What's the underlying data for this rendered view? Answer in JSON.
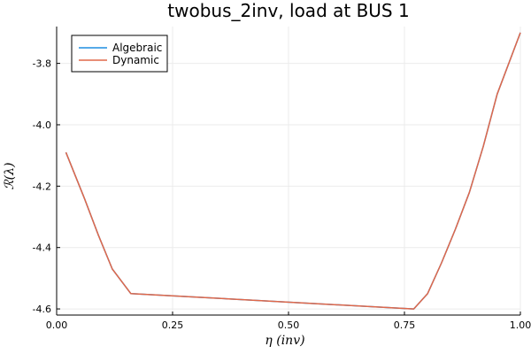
{
  "chart_data": {
    "type": "line",
    "title": "twobus_2inv, load at BUS 1",
    "xlabel": "η (inv)",
    "ylabel": "ℛ(λ)",
    "xlim": [
      0.0,
      1.0
    ],
    "ylim": [
      -4.62,
      -3.68
    ],
    "xticks": [
      0.0,
      0.25,
      0.5,
      0.75,
      1.0
    ],
    "xtick_labels": [
      "0.00",
      "0.25",
      "0.50",
      "0.75",
      "1.00"
    ],
    "yticks": [
      -4.6,
      -4.4,
      -4.2,
      -4.0,
      -3.8
    ],
    "ytick_labels": [
      "-4.6",
      "-4.4",
      "-4.2",
      "-4.0",
      "-3.8"
    ],
    "grid": true,
    "legend_position": "top-left",
    "series": [
      {
        "name": "Algebraic",
        "color": "#1f8ee0",
        "x": [
          0.02,
          0.06,
          0.09,
          0.12,
          0.16,
          0.77,
          0.8,
          0.83,
          0.86,
          0.89,
          0.92,
          0.95,
          1.0
        ],
        "y": [
          -4.09,
          -4.24,
          -4.36,
          -4.47,
          -4.55,
          -4.6,
          -4.55,
          -4.45,
          -4.34,
          -4.22,
          -4.07,
          -3.9,
          -3.7
        ]
      },
      {
        "name": "Dynamic",
        "color": "#e0684a",
        "x": [
          0.02,
          0.06,
          0.09,
          0.12,
          0.16,
          0.77,
          0.8,
          0.83,
          0.86,
          0.89,
          0.92,
          0.95,
          1.0
        ],
        "y": [
          -4.09,
          -4.24,
          -4.36,
          -4.47,
          -4.55,
          -4.6,
          -4.55,
          -4.45,
          -4.34,
          -4.22,
          -4.07,
          -3.9,
          -3.7
        ]
      }
    ]
  }
}
